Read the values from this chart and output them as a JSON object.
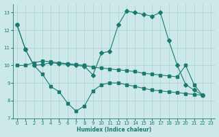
{
  "lineA_x": [
    0,
    1,
    2,
    3,
    4,
    5,
    6,
    7,
    8,
    9,
    10,
    11,
    12,
    13,
    14,
    15,
    16,
    17,
    18,
    19,
    20,
    21,
    22
  ],
  "lineA_y": [
    12.3,
    10.9,
    10.0,
    10.05,
    10.15,
    10.1,
    10.05,
    10.0,
    9.95,
    9.45,
    10.7,
    10.8,
    12.3,
    13.1,
    13.0,
    12.9,
    12.8,
    13.0,
    11.4,
    10.0,
    8.9,
    8.6,
    8.3
  ],
  "lineB_x": [
    0,
    1,
    2,
    3,
    4,
    5,
    6,
    7,
    8,
    9,
    10,
    11,
    12,
    13,
    14,
    15,
    16,
    17,
    18,
    19,
    20,
    21,
    22
  ],
  "lineB_y": [
    10.0,
    10.0,
    10.15,
    10.25,
    10.2,
    10.15,
    10.1,
    10.05,
    10.0,
    9.9,
    9.85,
    9.8,
    9.75,
    9.7,
    9.65,
    9.55,
    9.5,
    9.45,
    9.4,
    9.35,
    10.0,
    8.9,
    8.3
  ],
  "lineC_x": [
    0,
    1,
    2,
    3,
    4,
    5,
    6,
    7,
    8,
    9,
    10,
    11,
    12,
    13,
    14,
    15,
    16,
    17,
    18,
    19,
    20,
    21,
    22
  ],
  "lineC_y": [
    12.3,
    10.9,
    10.0,
    9.5,
    8.8,
    8.5,
    7.85,
    7.4,
    7.7,
    8.55,
    8.9,
    9.0,
    9.0,
    8.9,
    8.8,
    8.7,
    8.6,
    8.55,
    8.5,
    8.45,
    8.4,
    8.35,
    8.3
  ],
  "color": "#1a7a6e",
  "bg_color": "#cce8e8",
  "grid_color": "#aad0d0",
  "xlabel": "Humidex (Indice chaleur)",
  "ylim": [
    7,
    13.5
  ],
  "xlim": [
    -0.5,
    23.5
  ],
  "yticks": [
    7,
    8,
    9,
    10,
    11,
    12,
    13
  ],
  "xticks": [
    0,
    1,
    2,
    3,
    4,
    5,
    6,
    7,
    8,
    9,
    10,
    11,
    12,
    13,
    14,
    15,
    16,
    17,
    18,
    19,
    20,
    21,
    22,
    23
  ]
}
